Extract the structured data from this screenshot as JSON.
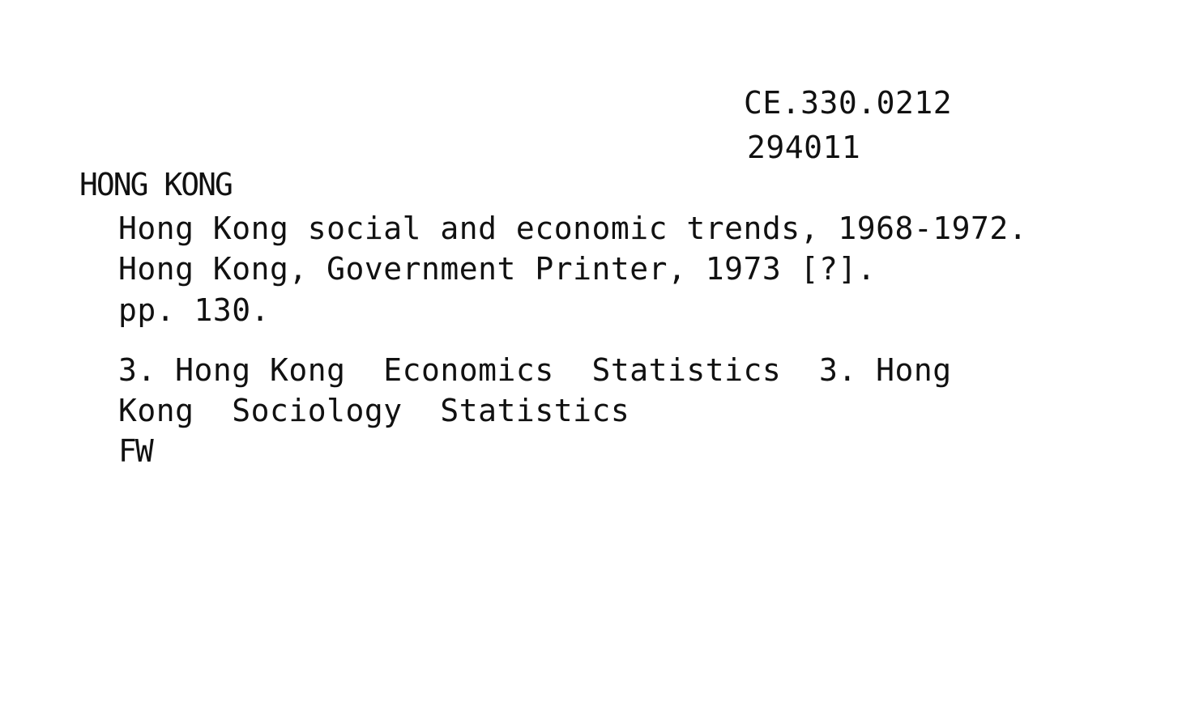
{
  "card": {
    "classmark": "CE.330.0212",
    "accession": "294011",
    "heading": "HONG KONG",
    "title": "Hong Kong social and economic trends, 1968-1972.",
    "imprint": "Hong Kong, Government Printer, 1973 [?].",
    "collation": "pp. 130.",
    "subjects_line1": "3. Hong Kong  Economics  Statistics  3. Hong",
    "subjects_line2": "Kong  Sociology  Statistics",
    "initials": "FW"
  }
}
